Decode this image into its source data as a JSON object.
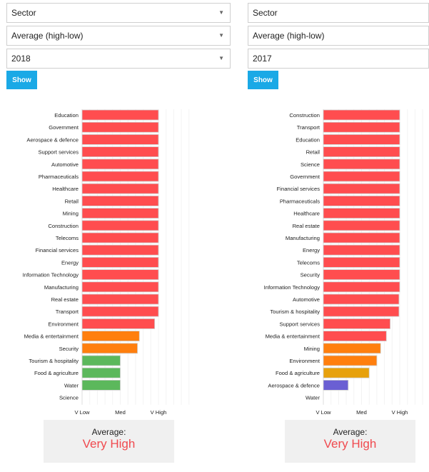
{
  "left": {
    "filters": {
      "group": "Sector",
      "measure": "Average (high-low)",
      "year": "2018"
    },
    "show_label": "Show",
    "average": {
      "label": "Average:",
      "value": "Very High"
    }
  },
  "right": {
    "filters": {
      "group": "Sector",
      "measure": "Average (high-low)",
      "year": "2017"
    },
    "show_label": "Show",
    "average": {
      "label": "Average:",
      "value": "Very High"
    }
  },
  "colors": {
    "very_high": "#ff4d4f",
    "high": "#ff7f0e",
    "medium": "#e7a10c",
    "med": "#5cb85c",
    "low": "#6a5fd3",
    "accent": "#1aa9e6"
  },
  "chart_data": [
    {
      "type": "bar",
      "orientation": "horizontal",
      "year": "2018",
      "xlim": [
        0,
        3
      ],
      "x_ticks": [
        {
          "value": 0,
          "label": "V Low"
        },
        {
          "value": 1,
          "label": "Med"
        },
        {
          "value": 2,
          "label": "V High"
        }
      ],
      "categories": [
        "Education",
        "Government",
        "Aerospace & defence",
        "Support services",
        "Automotive",
        "Pharmaceuticals",
        "Healthcare",
        "Retail",
        "Mining",
        "Construction",
        "Telecoms",
        "Financial services",
        "Energy",
        "Information Technology",
        "Manufacturing",
        "Real estate",
        "Transport",
        "Environment",
        "Media & entertainment",
        "Security",
        "Tourism & hospitality",
        "Food & agriculture",
        "Water",
        "Science"
      ],
      "values": [
        2,
        2,
        2,
        2,
        2,
        2,
        2,
        2,
        2,
        2,
        2,
        2,
        2,
        2,
        2,
        2,
        2,
        1.9,
        1.5,
        1.45,
        1,
        1,
        1,
        0
      ],
      "bar_colors": [
        "#ff4d4f",
        "#ff4d4f",
        "#ff4d4f",
        "#ff4d4f",
        "#ff4d4f",
        "#ff4d4f",
        "#ff4d4f",
        "#ff4d4f",
        "#ff4d4f",
        "#ff4d4f",
        "#ff4d4f",
        "#ff4d4f",
        "#ff4d4f",
        "#ff4d4f",
        "#ff4d4f",
        "#ff4d4f",
        "#ff4d4f",
        "#ff4d4f",
        "#ff7f0e",
        "#ff7f0e",
        "#5cb85c",
        "#5cb85c",
        "#5cb85c",
        "#5cb85c"
      ]
    },
    {
      "type": "bar",
      "orientation": "horizontal",
      "year": "2017",
      "xlim": [
        0,
        3
      ],
      "x_ticks": [
        {
          "value": 0,
          "label": "V Low"
        },
        {
          "value": 1,
          "label": "Med"
        },
        {
          "value": 2,
          "label": "V High"
        }
      ],
      "categories": [
        "Construction",
        "Transport",
        "Education",
        "Retail",
        "Science",
        "Government",
        "Financial services",
        "Pharmaceuticals",
        "Healthcare",
        "Real estate",
        "Manufacturing",
        "Energy",
        "Telecoms",
        "Security",
        "Information Technology",
        "Automotive",
        "Tourism & hospitality",
        "Support services",
        "Media & entertainment",
        "Mining",
        "Environment",
        "Food & agriculture",
        "Aerospace & defence",
        "Water"
      ],
      "values": [
        2,
        2,
        2,
        2,
        2,
        2,
        2,
        2,
        2,
        2,
        2,
        2,
        2,
        2,
        2,
        1.98,
        1.98,
        1.75,
        1.65,
        1.5,
        1.4,
        1.2,
        0.65,
        0
      ],
      "bar_colors": [
        "#ff4d4f",
        "#ff4d4f",
        "#ff4d4f",
        "#ff4d4f",
        "#ff4d4f",
        "#ff4d4f",
        "#ff4d4f",
        "#ff4d4f",
        "#ff4d4f",
        "#ff4d4f",
        "#ff4d4f",
        "#ff4d4f",
        "#ff4d4f",
        "#ff4d4f",
        "#ff4d4f",
        "#ff4d4f",
        "#ff4d4f",
        "#ff4d4f",
        "#ff4d4f",
        "#ff7f0e",
        "#ff7f0e",
        "#e7a10c",
        "#6a5fd3",
        "#6a5fd3"
      ]
    }
  ]
}
